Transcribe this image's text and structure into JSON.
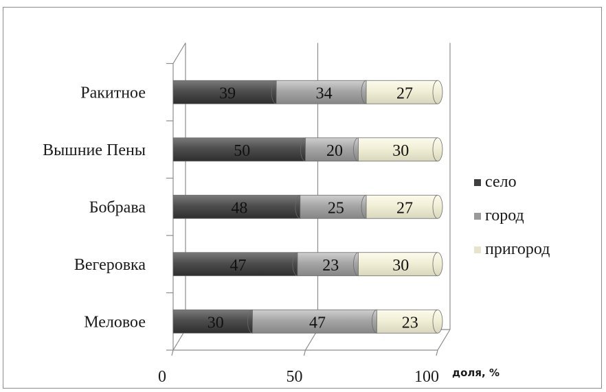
{
  "chart_data": {
    "type": "bar",
    "orientation": "horizontal",
    "stacked": true,
    "categories": [
      "Ракитное",
      "Вышние Пены",
      "Бобрава",
      "Вегеровка",
      "Меловое"
    ],
    "series": [
      {
        "name": "село",
        "values": [
          39,
          50,
          48,
          47,
          30
        ],
        "color": "#555555"
      },
      {
        "name": "город",
        "values": [
          34,
          20,
          25,
          23,
          47
        ],
        "color": "#a8a8a8"
      },
      {
        "name": "пригород",
        "values": [
          27,
          30,
          27,
          30,
          23
        ],
        "color": "#f3f1dc"
      }
    ],
    "xlabel": "доля, %",
    "xlim": [
      0,
      100
    ],
    "xticks": [
      "0",
      "50",
      "100"
    ],
    "grid": true,
    "legend_position": "right"
  }
}
